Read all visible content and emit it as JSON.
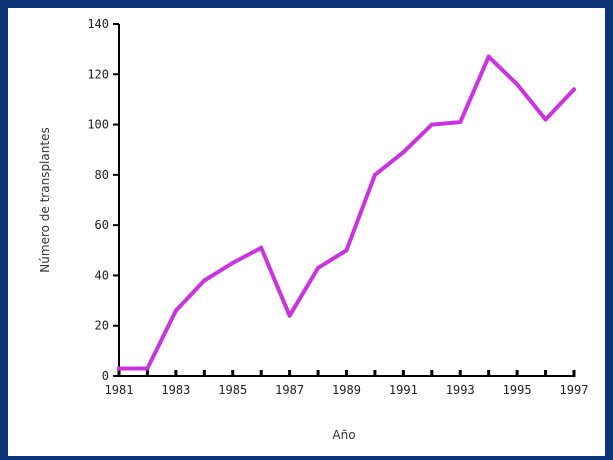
{
  "chart_data": {
    "type": "line",
    "title": "",
    "xlabel": "Año",
    "ylabel": "Número de transplantes",
    "ylim": [
      0,
      140
    ],
    "yticks": [
      0,
      20,
      40,
      60,
      80,
      100,
      120,
      140
    ],
    "xtick_labels": [
      "1981",
      "1983",
      "1985",
      "1987",
      "1989",
      "1991",
      "1993",
      "1995",
      "1997"
    ],
    "grid": false,
    "colors": {
      "line": "#cc33e0",
      "axis": "#000000",
      "frame": "#0d3578"
    },
    "series": [
      {
        "x": [
          1981,
          1982,
          1983,
          1984,
          1985,
          1986,
          1987,
          1988,
          1989,
          1990,
          1991,
          1992,
          1993,
          1994,
          1995,
          1996,
          1997
        ],
        "values": [
          3,
          3,
          26,
          38,
          45,
          51,
          24,
          43,
          50,
          80,
          89,
          100,
          101,
          127,
          116,
          102,
          114
        ]
      }
    ]
  }
}
